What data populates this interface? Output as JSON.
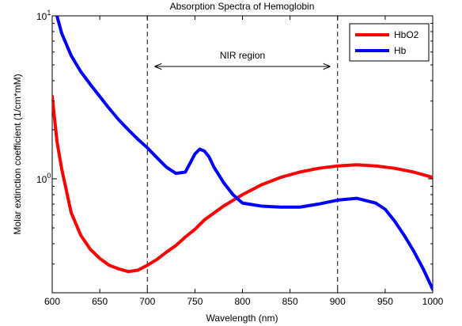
{
  "chart_data": {
    "type": "line",
    "title": "Absorption Spectra of Hemoglobin",
    "xlabel": "Wavelength (nm)",
    "ylabel": "Molar extinction coefficient (1/cm*mM)",
    "xlim": [
      600,
      1000
    ],
    "ylim": [
      0.2,
      10
    ],
    "yscale": "log",
    "x_ticks": [
      600,
      650,
      700,
      750,
      800,
      850,
      900,
      950,
      1000
    ],
    "y_ticks": [
      {
        "value": 1,
        "base": "10",
        "exp": "0"
      },
      {
        "value": 10,
        "base": "10",
        "exp": "1"
      }
    ],
    "grid": false,
    "legend": "top-right",
    "series": [
      {
        "name": "HbO2",
        "color": "#ff0000",
        "x": [
          600,
          605,
          610,
          620,
          630,
          640,
          650,
          660,
          670,
          680,
          690,
          700,
          710,
          720,
          730,
          740,
          750,
          760,
          780,
          800,
          820,
          840,
          860,
          880,
          900,
          920,
          940,
          960,
          980,
          1000
        ],
        "y": [
          3.2,
          1.7,
          1.15,
          0.62,
          0.45,
          0.37,
          0.325,
          0.295,
          0.28,
          0.27,
          0.275,
          0.295,
          0.32,
          0.355,
          0.39,
          0.44,
          0.49,
          0.56,
          0.68,
          0.8,
          0.92,
          1.02,
          1.1,
          1.16,
          1.2,
          1.22,
          1.2,
          1.16,
          1.1,
          1.02
        ]
      },
      {
        "name": "Hb",
        "color": "#0000ff",
        "x": [
          605,
          610,
          620,
          630,
          640,
          650,
          660,
          670,
          680,
          690,
          700,
          710,
          720,
          730,
          740,
          745,
          750,
          755,
          760,
          765,
          770,
          780,
          790,
          800,
          820,
          840,
          860,
          880,
          900,
          920,
          940,
          950,
          960,
          970,
          980,
          990,
          1000
        ],
        "y": [
          10,
          7.8,
          5.7,
          4.55,
          3.8,
          3.2,
          2.7,
          2.3,
          2.0,
          1.75,
          1.55,
          1.35,
          1.18,
          1.08,
          1.1,
          1.25,
          1.42,
          1.52,
          1.48,
          1.36,
          1.18,
          0.95,
          0.8,
          0.71,
          0.68,
          0.67,
          0.67,
          0.7,
          0.74,
          0.76,
          0.71,
          0.65,
          0.55,
          0.45,
          0.36,
          0.28,
          0.21
        ]
      }
    ],
    "vlines": [
      700,
      900
    ],
    "annotations": [
      {
        "text": "NIR region",
        "x_from": 700,
        "x_to": 900,
        "arrow": "double"
      }
    ]
  }
}
